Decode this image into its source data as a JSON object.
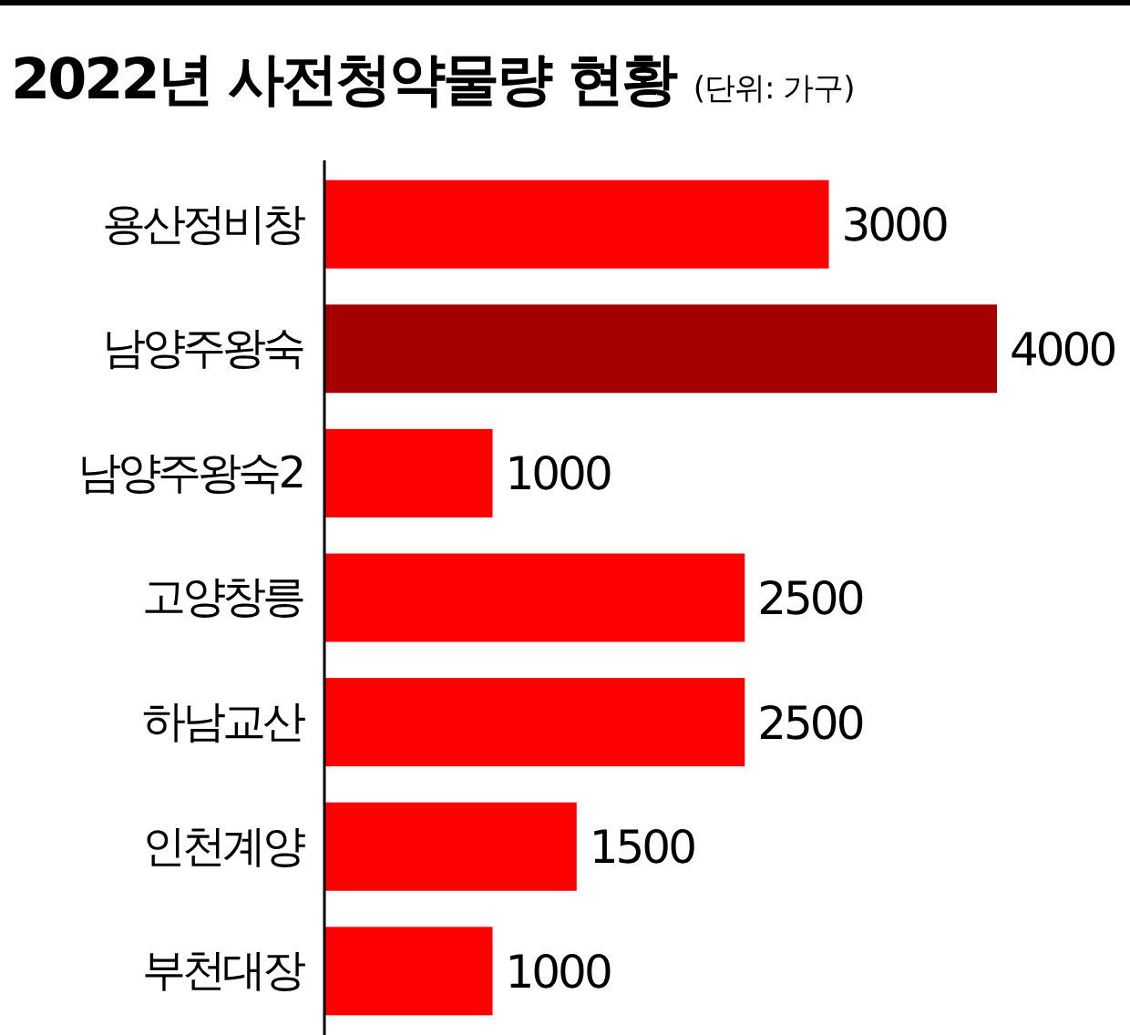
{
  "chart_data": {
    "type": "bar",
    "orientation": "horizontal",
    "title": "2022년 사전청약물량 현황",
    "subtitle": "(단위: 가구)",
    "categories": [
      "용산정비창",
      "남양주왕숙",
      "남양주왕숙2",
      "고양창릉",
      "하남교산",
      "인천계양",
      "부천대장"
    ],
    "values": [
      3000,
      4000,
      1000,
      2500,
      2500,
      1500,
      1000
    ],
    "colors": [
      "#ff0000",
      "#a50000",
      "#ff0000",
      "#ff0000",
      "#ff0000",
      "#ff0000",
      "#ff0000"
    ],
    "data_labels": true
  }
}
